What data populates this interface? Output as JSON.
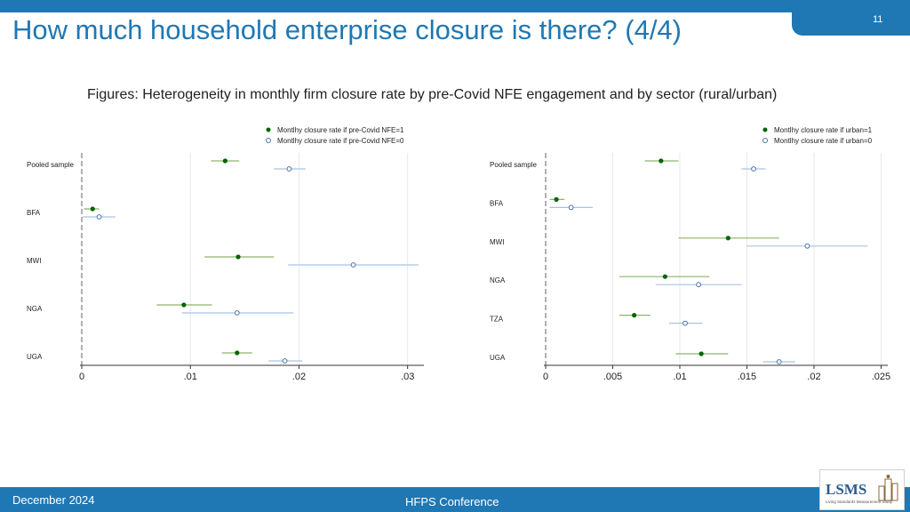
{
  "page_number": "11",
  "title": "How much household enterprise closure is there? (4/4)",
  "subtitle": "Figures: Heterogeneity in monthly firm closure rate by pre-Covid NFE engagement and by sector (rural/urban)",
  "footer": {
    "date": "December 2024",
    "conference": "HFPS Conference"
  },
  "logo": {
    "text": "LSMS",
    "subtext": "Living Standards Measurement Study"
  },
  "colors": {
    "accent": "#1f78b4",
    "filled_marker": "#006400",
    "hollow_marker": "#4a6fa5",
    "filled_ci": "#8db36a",
    "hollow_ci": "#a7c4e0"
  },
  "chart_data": [
    {
      "type": "scatter",
      "subtype": "dot-and-whisker",
      "categories": [
        "Pooled sample",
        "BFA",
        "MWI",
        "NGA",
        "UGA"
      ],
      "xticks": [
        "0",
        ".01",
        ".02",
        ".03"
      ],
      "xlim": [
        0,
        0.0315
      ],
      "series": [
        {
          "name": "Montlhy closure rate if pre-Covid NFE=1",
          "marker": "filled",
          "values": [
            0.0132,
            0.001,
            0.0144,
            0.0094,
            0.0143
          ],
          "ci_low": [
            0.0119,
            0.0002,
            0.0113,
            0.0069,
            0.0129
          ],
          "ci_high": [
            0.0145,
            0.0016,
            0.0177,
            0.012,
            0.0157
          ]
        },
        {
          "name": "Montlhy closure rate if pre-Covid NFE=0",
          "marker": "hollow",
          "values": [
            0.0191,
            0.0016,
            0.025,
            0.0143,
            0.0187
          ],
          "ci_low": [
            0.0177,
            0.0001,
            0.019,
            0.0092,
            0.0172
          ],
          "ci_high": [
            0.0206,
            0.0031,
            0.031,
            0.0195,
            0.0203
          ]
        }
      ]
    },
    {
      "type": "scatter",
      "subtype": "dot-and-whisker",
      "categories": [
        "Pooled sample",
        "BFA",
        "MWI",
        "NGA",
        "TZA",
        "UGA"
      ],
      "xticks": [
        "0",
        ".005",
        ".01",
        ".015",
        ".02",
        ".025"
      ],
      "xlim": [
        0,
        0.0255
      ],
      "series": [
        {
          "name": "Montlhy closure rate if urban=1",
          "marker": "filled",
          "values": [
            0.0086,
            0.0008,
            0.0136,
            0.0089,
            0.0066,
            0.0116
          ],
          "ci_low": [
            0.0074,
            0.0003,
            0.0099,
            0.0055,
            0.0055,
            0.0097
          ],
          "ci_high": [
            0.0099,
            0.0014,
            0.0174,
            0.0122,
            0.0078,
            0.0136
          ]
        },
        {
          "name": "Montlhy closure rate if urban=0",
          "marker": "hollow",
          "values": [
            0.0155,
            0.0019,
            0.0195,
            0.0114,
            0.0104,
            0.0174
          ],
          "ci_low": [
            0.0146,
            0.0003,
            0.015,
            0.0082,
            0.0092,
            0.0162
          ],
          "ci_high": [
            0.0164,
            0.0035,
            0.024,
            0.0146,
            0.0117,
            0.0186
          ]
        }
      ]
    }
  ]
}
